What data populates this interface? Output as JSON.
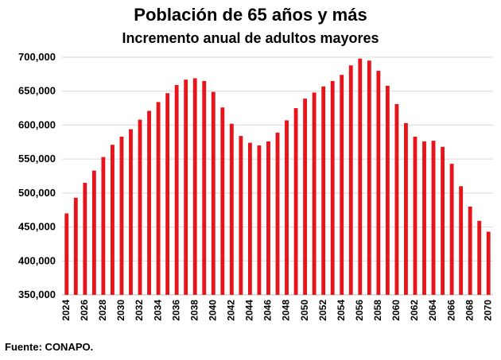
{
  "chart_data": {
    "type": "bar",
    "title": "Población de 65 años y más",
    "subtitle": "Incremento anual de adultos mayores",
    "xlabel": "",
    "ylabel": "",
    "ylim": [
      350000,
      700000
    ],
    "yticks": [
      350000,
      400000,
      450000,
      500000,
      550000,
      600000,
      650000,
      700000
    ],
    "ytick_labels": [
      "350,000",
      "400,000",
      "450,000",
      "500,000",
      "550,000",
      "600,000",
      "650,000",
      "700,000"
    ],
    "grid": "horizontal",
    "bar_color": "#e8141b",
    "categories": [
      "2024",
      "2025",
      "2026",
      "2027",
      "2028",
      "2029",
      "2030",
      "2031",
      "2032",
      "2033",
      "2034",
      "2035",
      "2036",
      "2037",
      "2038",
      "2039",
      "2040",
      "2041",
      "2042",
      "2043",
      "2044",
      "2045",
      "2046",
      "2047",
      "2048",
      "2049",
      "2050",
      "2051",
      "2052",
      "2053",
      "2054",
      "2055",
      "2056",
      "2057",
      "2058",
      "2059",
      "2060",
      "2061",
      "2062",
      "2063",
      "2064",
      "2065",
      "2066",
      "2067",
      "2068",
      "2069",
      "2070"
    ],
    "x_tick_labels": [
      "2024",
      "2026",
      "2028",
      "2030",
      "2032",
      "2034",
      "2036",
      "2038",
      "2040",
      "2042",
      "2044",
      "2046",
      "2048",
      "2050",
      "2052",
      "2054",
      "2056",
      "2058",
      "2060",
      "2062",
      "2064",
      "2066",
      "2068",
      "2070"
    ],
    "values": [
      470000,
      493000,
      515000,
      533000,
      553000,
      571000,
      583000,
      594000,
      608000,
      621000,
      634000,
      647000,
      659000,
      667000,
      669000,
      665000,
      649000,
      626000,
      602000,
      584000,
      574000,
      570000,
      576000,
      589000,
      607000,
      625000,
      639000,
      648000,
      657000,
      665000,
      674000,
      688000,
      698000,
      695000,
      680000,
      658000,
      631000,
      603000,
      583000,
      576000,
      577000,
      568000,
      543000,
      510000,
      480000,
      459000,
      443000
    ]
  },
  "source": "Fuente: CONAPO."
}
